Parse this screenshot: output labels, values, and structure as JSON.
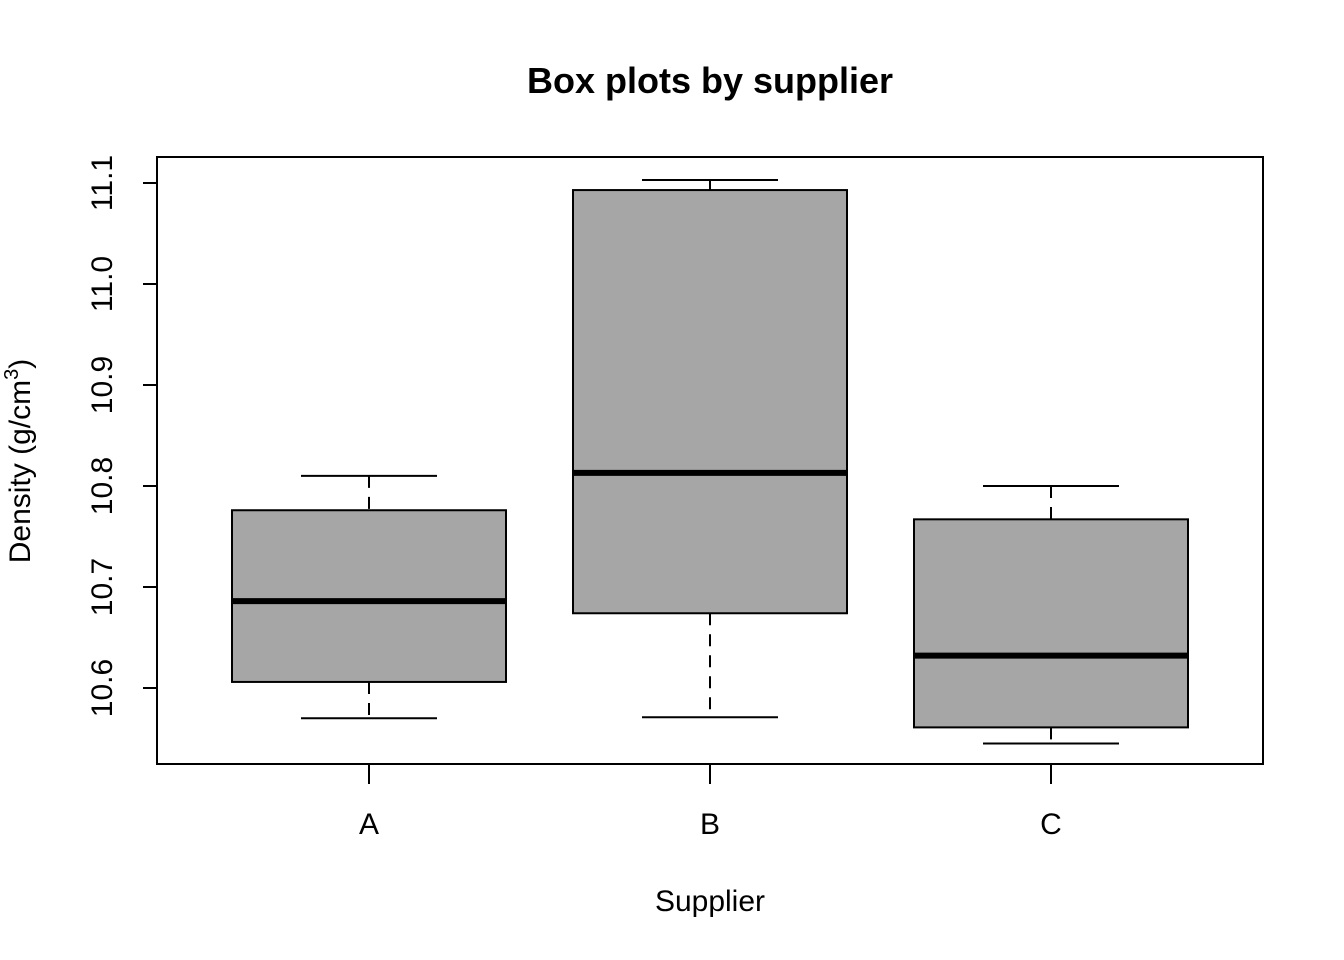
{
  "chart_data": {
    "type": "boxplot",
    "title": "Box plots by supplier",
    "xlabel": "Supplier",
    "ylabel": "Density (g/cm",
    "ylabel_sup": "3",
    "ylabel_close": ")",
    "ylim": [
      10.545,
      11.113
    ],
    "yticks": [
      10.6,
      10.7,
      10.8,
      10.9,
      11.0,
      11.1
    ],
    "ytick_labels": [
      "10.6",
      "10.7",
      "10.8",
      "10.9",
      "11.0",
      "11.1"
    ],
    "categories": [
      "A",
      "B",
      "C"
    ],
    "boxes": [
      {
        "category": "A",
        "min": 10.57,
        "q1": 10.606,
        "median": 10.686,
        "q3": 10.776,
        "max": 10.81
      },
      {
        "category": "B",
        "min": 10.571,
        "q1": 10.674,
        "median": 10.813,
        "q3": 11.093,
        "max": 11.103
      },
      {
        "category": "C",
        "min": 10.545,
        "q1": 10.561,
        "median": 10.632,
        "q3": 10.767,
        "max": 10.8
      }
    ],
    "grid": false,
    "colors": {
      "box_fill": "#a6a6a6",
      "stroke": "#000000"
    }
  }
}
